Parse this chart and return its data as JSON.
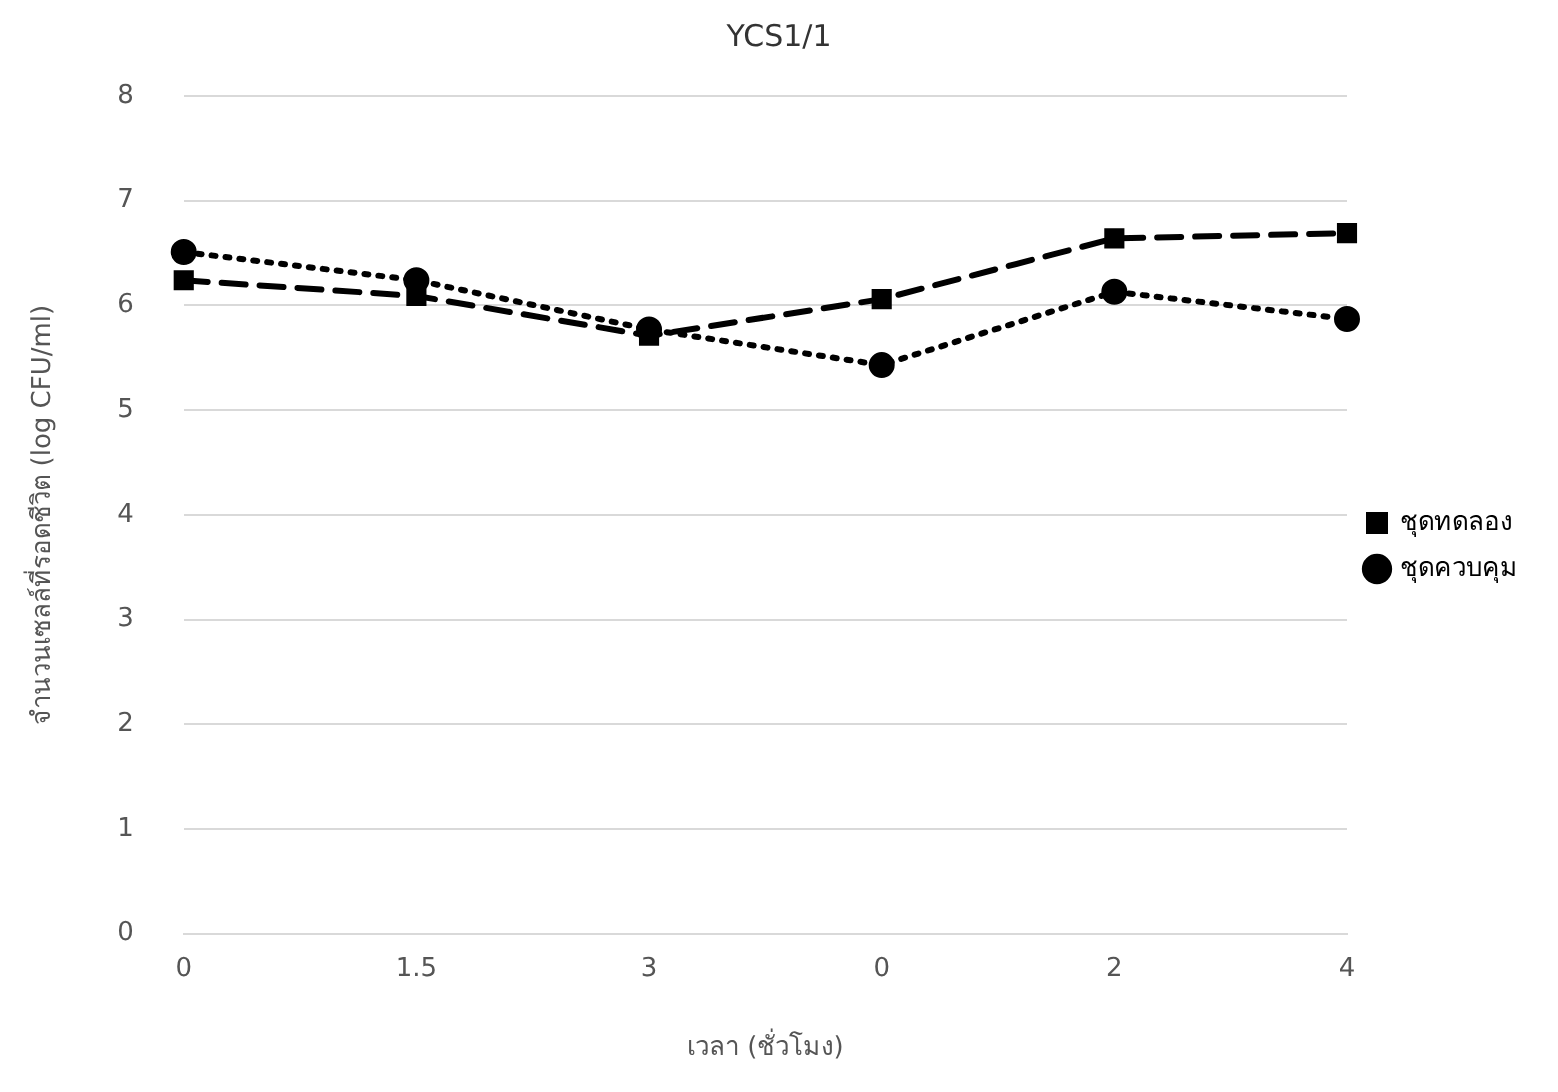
{
  "chart_data": {
    "type": "line",
    "title": "YCS1/1",
    "xlabel": "เวลา (ชั่วโมง)",
    "ylabel": "จำนวนเซลล์ที่รอดชีวิต (log CFU/ml)",
    "categories": [
      "0",
      "1.5",
      "3",
      "0",
      "2",
      "4"
    ],
    "series": [
      {
        "name": "ชุดทดลอง",
        "color": "#000000",
        "marker": "square",
        "line_style": "dashed",
        "values": [
          6.24,
          6.09,
          5.71,
          6.06,
          6.64,
          6.69
        ]
      },
      {
        "name": "ชุดควบคุม",
        "color": "#000000",
        "marker": "circle",
        "line_style": "dotted",
        "values": [
          6.51,
          6.24,
          5.77,
          5.43,
          6.13,
          5.87
        ]
      }
    ],
    "ylim": [
      0,
      8
    ],
    "yticks": [
      0,
      1,
      2,
      3,
      4,
      5,
      6,
      7,
      8
    ],
    "grid": "y",
    "legend": "right"
  }
}
